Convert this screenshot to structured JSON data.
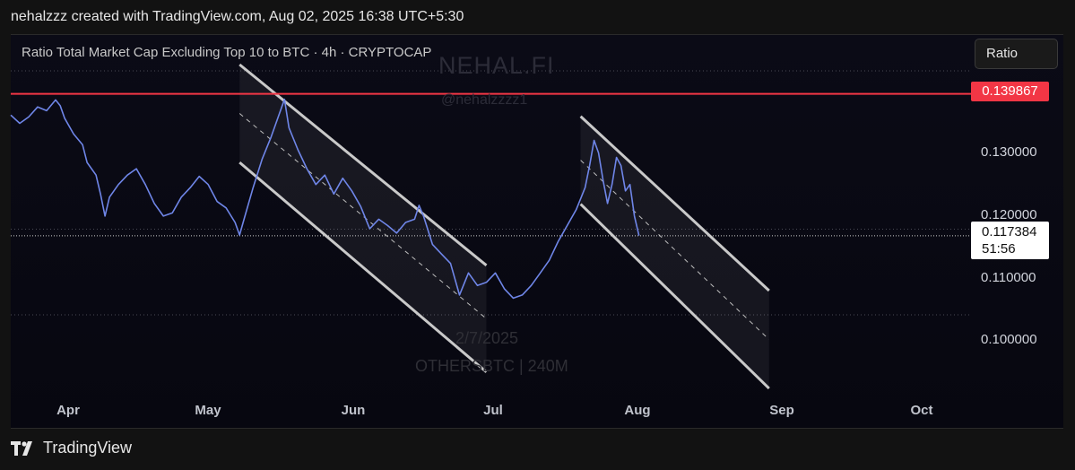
{
  "header": {
    "attribution": "nehalzzz created with TradingView.com, Aug 02, 2025 16:38 UTC+5:30"
  },
  "chart_title": "Ratio Total Market Cap Excluding Top 10 to BTC · 4h · CRYPTOCAP",
  "toolbar": {
    "ratio_label": "Ratio"
  },
  "watermarks": {
    "name": "NEHAL.FI",
    "handle": "@nehalzzzz1",
    "date": "2/7/2025",
    "symbol": "OTHERSBTC | 240M"
  },
  "badges": {
    "resistance": "0.139867",
    "current_price": "0.117384",
    "countdown": "51:56"
  },
  "colors": {
    "price_line": "#6f86e8",
    "resistance": "#f23645",
    "channel": "#c9c9c9",
    "background": "#121212"
  },
  "footer": {
    "brand": "TradingView"
  },
  "chart_data": {
    "type": "line",
    "title": "Ratio Total Market Cap Excluding Top 10 to BTC · 4h · CRYPTOCAP",
    "y_ticks": [
      "0.130000",
      "0.120000",
      "0.110000",
      "0.100000"
    ],
    "y_tick_values": [
      0.13,
      0.12,
      0.11,
      0.1
    ],
    "x_ticks": [
      "Apr",
      "May",
      "Jun",
      "Jul",
      "Aug",
      "Sep",
      "Oct"
    ],
    "x_tick_dates": [
      "2025-04-01",
      "2025-05-01",
      "2025-06-01",
      "2025-07-01",
      "2025-08-01",
      "2025-09-01",
      "2025-10-01"
    ],
    "xlim": [
      "2025-03-20",
      "2025-10-20"
    ],
    "ylim": [
      0.0925,
      0.1445
    ],
    "horizontal_level": 0.139867,
    "last_price": 0.117384,
    "series": [
      {
        "values": [
          [
            "2025-03-20",
            0.1365
          ],
          [
            "2025-03-22",
            0.1352
          ],
          [
            "2025-03-24",
            0.1362
          ],
          [
            "2025-03-26",
            0.1378
          ],
          [
            "2025-03-28",
            0.1372
          ],
          [
            "2025-03-30",
            0.1389
          ],
          [
            "2025-03-31",
            0.138
          ],
          [
            "2025-04-01",
            0.136
          ],
          [
            "2025-04-03",
            0.1335
          ],
          [
            "2025-04-05",
            0.1318
          ],
          [
            "2025-04-06",
            0.129
          ],
          [
            "2025-04-08",
            0.127
          ],
          [
            "2025-04-09",
            0.124
          ],
          [
            "2025-04-10",
            0.1205
          ],
          [
            "2025-04-11",
            0.1235
          ],
          [
            "2025-04-13",
            0.1255
          ],
          [
            "2025-04-15",
            0.127
          ],
          [
            "2025-04-17",
            0.128
          ],
          [
            "2025-04-19",
            0.1255
          ],
          [
            "2025-04-21",
            0.1225
          ],
          [
            "2025-04-23",
            0.1205
          ],
          [
            "2025-04-25",
            0.121
          ],
          [
            "2025-04-27",
            0.1235
          ],
          [
            "2025-04-29",
            0.125
          ],
          [
            "2025-05-01",
            0.1268
          ],
          [
            "2025-05-03",
            0.1255
          ],
          [
            "2025-05-05",
            0.1228
          ],
          [
            "2025-05-07",
            0.1218
          ],
          [
            "2025-05-09",
            0.1195
          ],
          [
            "2025-05-10",
            0.1175
          ],
          [
            "2025-05-11",
            0.12
          ],
          [
            "2025-05-13",
            0.125
          ],
          [
            "2025-05-15",
            0.1295
          ],
          [
            "2025-05-17",
            0.133
          ],
          [
            "2025-05-19",
            0.137
          ],
          [
            "2025-05-20",
            0.139
          ],
          [
            "2025-05-21",
            0.1345
          ],
          [
            "2025-05-23",
            0.131
          ],
          [
            "2025-05-25",
            0.128
          ],
          [
            "2025-05-27",
            0.1255
          ],
          [
            "2025-05-29",
            0.127
          ],
          [
            "2025-05-31",
            0.124
          ],
          [
            "2025-06-02",
            0.1265
          ],
          [
            "2025-06-04",
            0.1245
          ],
          [
            "2025-06-06",
            0.122
          ],
          [
            "2025-06-08",
            0.1185
          ],
          [
            "2025-06-10",
            0.12
          ],
          [
            "2025-06-12",
            0.119
          ],
          [
            "2025-06-14",
            0.1178
          ],
          [
            "2025-06-16",
            0.1195
          ],
          [
            "2025-06-18",
            0.12
          ],
          [
            "2025-06-19",
            0.1222
          ],
          [
            "2025-06-20",
            0.1205
          ],
          [
            "2025-06-22",
            0.116
          ],
          [
            "2025-06-24",
            0.1145
          ],
          [
            "2025-06-26",
            0.113
          ],
          [
            "2025-06-27",
            0.1105
          ],
          [
            "2025-06-28",
            0.108
          ],
          [
            "2025-06-30",
            0.1115
          ],
          [
            "2025-07-02",
            0.1095
          ],
          [
            "2025-07-04",
            0.11
          ],
          [
            "2025-07-06",
            0.1115
          ],
          [
            "2025-07-08",
            0.109
          ],
          [
            "2025-07-10",
            0.1075
          ],
          [
            "2025-07-12",
            0.108
          ],
          [
            "2025-07-14",
            0.1095
          ],
          [
            "2025-07-16",
            0.1115
          ],
          [
            "2025-07-18",
            0.1135
          ],
          [
            "2025-07-20",
            0.1165
          ],
          [
            "2025-07-22",
            0.119
          ],
          [
            "2025-07-24",
            0.1215
          ],
          [
            "2025-07-26",
            0.125
          ],
          [
            "2025-07-27",
            0.1285
          ],
          [
            "2025-07-28",
            0.1325
          ],
          [
            "2025-07-29",
            0.1305
          ],
          [
            "2025-07-30",
            0.1262
          ],
          [
            "2025-07-31",
            0.1225
          ],
          [
            "2025-08-01",
            0.1255
          ],
          [
            "2025-08-02",
            0.1298
          ],
          [
            "2025-08-03",
            0.1285
          ],
          [
            "2025-08-04",
            0.1245
          ],
          [
            "2025-08-05",
            0.1255
          ],
          [
            "2025-08-06",
            0.1205
          ],
          [
            "2025-08-07",
            0.1174
          ]
        ]
      }
    ],
    "channels": [
      {
        "upper": [
          [
            "2025-05-10",
            0.1445
          ],
          [
            "2025-07-04",
            0.1127
          ]
        ],
        "lower": [
          [
            "2025-05-10",
            0.129
          ],
          [
            "2025-07-04",
            0.0958
          ]
        ]
      },
      {
        "upper": [
          [
            "2025-07-25",
            0.1363
          ],
          [
            "2025-09-05",
            0.1087
          ]
        ],
        "lower": [
          [
            "2025-07-25",
            0.1224
          ],
          [
            "2025-09-05",
            0.0932
          ]
        ]
      }
    ],
    "grid": false
  }
}
